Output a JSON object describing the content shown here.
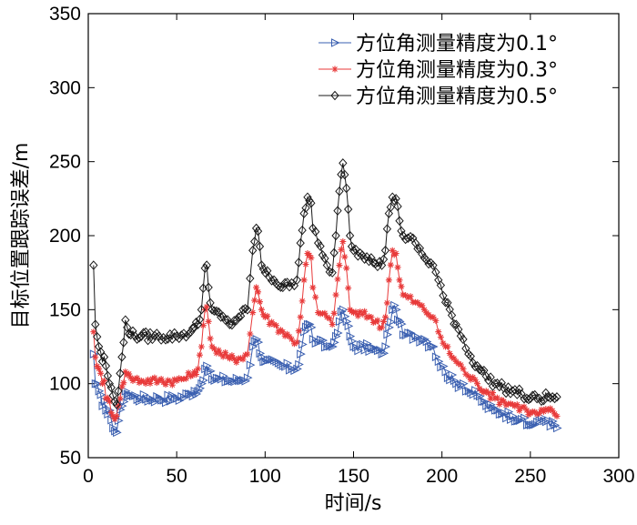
{
  "chart_data": {
    "type": "line",
    "title": "",
    "xlabel": "时间/s",
    "ylabel": "目标位置跟踪误差/m",
    "xlim": [
      0,
      300
    ],
    "ylim": [
      50,
      350
    ],
    "xticks": [
      0,
      50,
      100,
      150,
      200,
      250,
      300
    ],
    "yticks": [
      50,
      100,
      150,
      200,
      250,
      300,
      350
    ],
    "grid": false,
    "legend_position": "top-right",
    "series": [
      {
        "name": "方位角测量精度为0.1°",
        "color": "#3a5fb0",
        "marker": "triangle-right",
        "keypoints": [
          [
            3,
            120
          ],
          [
            4,
            100
          ],
          [
            6,
            95
          ],
          [
            8,
            85
          ],
          [
            9,
            88
          ],
          [
            10,
            82
          ],
          [
            12,
            82
          ],
          [
            14,
            70
          ],
          [
            15,
            68
          ],
          [
            16,
            67
          ],
          [
            17,
            75
          ],
          [
            19,
            85
          ],
          [
            21,
            95
          ],
          [
            22,
            93
          ],
          [
            24,
            92
          ],
          [
            30,
            90
          ],
          [
            40,
            90
          ],
          [
            50,
            90
          ],
          [
            58,
            93
          ],
          [
            60,
            95
          ],
          [
            62,
            95
          ],
          [
            64,
            100
          ],
          [
            66,
            110
          ],
          [
            67,
            112
          ],
          [
            68,
            108
          ],
          [
            70,
            103
          ],
          [
            75,
            103
          ],
          [
            80,
            102
          ],
          [
            85,
            102
          ],
          [
            90,
            104
          ],
          [
            93,
            125
          ],
          [
            95,
            130
          ],
          [
            96,
            128
          ],
          [
            98,
            118
          ],
          [
            100,
            115
          ],
          [
            110,
            112
          ],
          [
            115,
            110
          ],
          [
            118,
            110
          ],
          [
            120,
            120
          ],
          [
            122,
            135
          ],
          [
            124,
            140
          ],
          [
            126,
            138
          ],
          [
            127,
            130
          ],
          [
            130,
            128
          ],
          [
            135,
            125
          ],
          [
            138,
            125
          ],
          [
            140,
            132
          ],
          [
            142,
            142
          ],
          [
            144,
            150
          ],
          [
            146,
            142
          ],
          [
            148,
            132
          ],
          [
            150,
            125
          ],
          [
            160,
            124
          ],
          [
            166,
            120
          ],
          [
            168,
            125
          ],
          [
            170,
            138
          ],
          [
            172,
            150
          ],
          [
            174,
            150
          ],
          [
            176,
            142
          ],
          [
            178,
            133
          ],
          [
            185,
            132
          ],
          [
            190,
            130
          ],
          [
            195,
            125
          ],
          [
            198,
            115
          ],
          [
            202,
            108
          ],
          [
            208,
            100
          ],
          [
            212,
            100
          ],
          [
            215,
            95
          ],
          [
            220,
            92
          ],
          [
            225,
            85
          ],
          [
            230,
            82
          ],
          [
            235,
            80
          ],
          [
            240,
            78
          ],
          [
            245,
            76
          ],
          [
            248,
            72
          ],
          [
            250,
            72
          ],
          [
            255,
            75
          ],
          [
            260,
            75
          ],
          [
            265,
            70
          ]
        ]
      },
      {
        "name": "方位角测量精度为0.3°",
        "color": "#e83a3a",
        "marker": "star",
        "keypoints": [
          [
            3,
            135
          ],
          [
            4,
            118
          ],
          [
            6,
            110
          ],
          [
            8,
            100
          ],
          [
            9,
            102
          ],
          [
            10,
            90
          ],
          [
            12,
            88
          ],
          [
            14,
            78
          ],
          [
            15,
            76
          ],
          [
            16,
            78
          ],
          [
            17,
            85
          ],
          [
            19,
            98
          ],
          [
            21,
            108
          ],
          [
            22,
            106
          ],
          [
            24,
            104
          ],
          [
            30,
            102
          ],
          [
            40,
            102
          ],
          [
            50,
            102
          ],
          [
            58,
            105
          ],
          [
            60,
            108
          ],
          [
            62,
            110
          ],
          [
            64,
            125
          ],
          [
            66,
            150
          ],
          [
            67,
            152
          ],
          [
            68,
            142
          ],
          [
            70,
            125
          ],
          [
            75,
            120
          ],
          [
            80,
            117
          ],
          [
            85,
            117
          ],
          [
            90,
            120
          ],
          [
            93,
            148
          ],
          [
            95,
            165
          ],
          [
            96,
            162
          ],
          [
            98,
            150
          ],
          [
            100,
            145
          ],
          [
            105,
            140
          ],
          [
            110,
            135
          ],
          [
            115,
            130
          ],
          [
            118,
            128
          ],
          [
            120,
            145
          ],
          [
            122,
            170
          ],
          [
            124,
            188
          ],
          [
            126,
            185
          ],
          [
            127,
            165
          ],
          [
            130,
            148
          ],
          [
            135,
            145
          ],
          [
            138,
            140
          ],
          [
            140,
            160
          ],
          [
            142,
            180
          ],
          [
            144,
            196
          ],
          [
            146,
            178
          ],
          [
            148,
            150
          ],
          [
            150,
            148
          ],
          [
            160,
            145
          ],
          [
            166,
            138
          ],
          [
            168,
            145
          ],
          [
            170,
            170
          ],
          [
            172,
            190
          ],
          [
            174,
            188
          ],
          [
            176,
            170
          ],
          [
            178,
            160
          ],
          [
            185,
            155
          ],
          [
            190,
            150
          ],
          [
            195,
            145
          ],
          [
            198,
            135
          ],
          [
            202,
            125
          ],
          [
            208,
            115
          ],
          [
            212,
            110
          ],
          [
            215,
            105
          ],
          [
            220,
            100
          ],
          [
            225,
            95
          ],
          [
            230,
            90
          ],
          [
            235,
            88
          ],
          [
            240,
            86
          ],
          [
            245,
            84
          ],
          [
            248,
            82
          ],
          [
            250,
            80
          ],
          [
            255,
            80
          ],
          [
            260,
            82
          ],
          [
            265,
            78
          ]
        ]
      },
      {
        "name": "方位角测量精度为0.5°",
        "color": "#1a1a1a",
        "marker": "diamond",
        "keypoints": [
          [
            3,
            180
          ],
          [
            4,
            140
          ],
          [
            6,
            125
          ],
          [
            8,
            115
          ],
          [
            9,
            118
          ],
          [
            10,
            112
          ],
          [
            12,
            100
          ],
          [
            14,
            92
          ],
          [
            15,
            88
          ],
          [
            16,
            86
          ],
          [
            17,
            95
          ],
          [
            19,
            118
          ],
          [
            21,
            143
          ],
          [
            22,
            138
          ],
          [
            24,
            133
          ],
          [
            30,
            132
          ],
          [
            40,
            132
          ],
          [
            50,
            132
          ],
          [
            58,
            135
          ],
          [
            60,
            138
          ],
          [
            62,
            140
          ],
          [
            64,
            150
          ],
          [
            66,
            178
          ],
          [
            67,
            180
          ],
          [
            68,
            165
          ],
          [
            70,
            150
          ],
          [
            75,
            145
          ],
          [
            80,
            140
          ],
          [
            85,
            145
          ],
          [
            90,
            150
          ],
          [
            93,
            190
          ],
          [
            95,
            205
          ],
          [
            96,
            203
          ],
          [
            98,
            180
          ],
          [
            100,
            175
          ],
          [
            105,
            170
          ],
          [
            110,
            165
          ],
          [
            115,
            168
          ],
          [
            118,
            170
          ],
          [
            120,
            195
          ],
          [
            122,
            215
          ],
          [
            124,
            226
          ],
          [
            126,
            222
          ],
          [
            127,
            205
          ],
          [
            130,
            195
          ],
          [
            135,
            180
          ],
          [
            138,
            175
          ],
          [
            140,
            200
          ],
          [
            142,
            230
          ],
          [
            144,
            249
          ],
          [
            146,
            232
          ],
          [
            148,
            200
          ],
          [
            150,
            190
          ],
          [
            160,
            185
          ],
          [
            166,
            180
          ],
          [
            168,
            190
          ],
          [
            170,
            215
          ],
          [
            172,
            226
          ],
          [
            174,
            225
          ],
          [
            176,
            210
          ],
          [
            178,
            200
          ],
          [
            185,
            195
          ],
          [
            190,
            185
          ],
          [
            195,
            180
          ],
          [
            198,
            170
          ],
          [
            202,
            155
          ],
          [
            208,
            140
          ],
          [
            212,
            130
          ],
          [
            215,
            120
          ],
          [
            220,
            112
          ],
          [
            225,
            105
          ],
          [
            230,
            100
          ],
          [
            235,
            97
          ],
          [
            240,
            95
          ],
          [
            245,
            93
          ],
          [
            248,
            90
          ],
          [
            250,
            90
          ],
          [
            255,
            90
          ],
          [
            260,
            91
          ],
          [
            265,
            91
          ]
        ]
      }
    ]
  }
}
